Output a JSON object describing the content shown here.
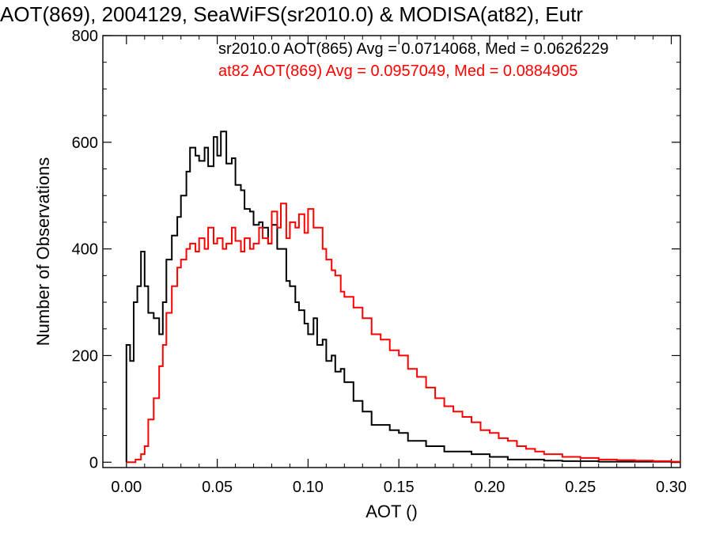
{
  "chart_data": {
    "type": "line",
    "title": "AOT(869), 2004129, SeaWiFS(sr2010.0) & MODISA(at82), Eutr",
    "xlabel": "AOT ()",
    "ylabel": "Number of Observations",
    "xlim": [
      -0.013,
      0.305
    ],
    "ylim": [
      -10,
      800
    ],
    "xticks": [
      0.0,
      0.05,
      0.1,
      0.15,
      0.2,
      0.25,
      0.3
    ],
    "xtick_labels": [
      "0.00",
      "0.05",
      "0.10",
      "0.15",
      "0.20",
      "0.25",
      "0.30"
    ],
    "yticks": [
      0,
      200,
      400,
      600,
      800
    ],
    "ytick_labels": [
      "0",
      "200",
      "400",
      "600",
      "800"
    ],
    "annotations": [
      {
        "text": "sr2010.0 AOT(865) Avg = 0.0714068, Med = 0.0626229",
        "color": "#000000"
      },
      {
        "text": "at82 AOT(869) Avg = 0.0957049, Med = 0.0884905",
        "color": "#ff0000"
      }
    ],
    "grid": false,
    "series": [
      {
        "color": "#000000",
        "x": [
          0.0,
          0.002,
          0.004,
          0.006,
          0.008,
          0.01,
          0.012,
          0.015,
          0.018,
          0.02,
          0.022,
          0.025,
          0.028,
          0.03,
          0.033,
          0.035,
          0.038,
          0.04,
          0.043,
          0.045,
          0.048,
          0.05,
          0.052,
          0.055,
          0.058,
          0.06,
          0.063,
          0.065,
          0.068,
          0.07,
          0.073,
          0.075,
          0.078,
          0.08,
          0.083,
          0.085,
          0.088,
          0.09,
          0.093,
          0.095,
          0.098,
          0.1,
          0.103,
          0.105,
          0.108,
          0.11,
          0.113,
          0.115,
          0.118,
          0.12,
          0.125,
          0.13,
          0.135,
          0.14,
          0.145,
          0.15,
          0.155,
          0.16,
          0.165,
          0.17,
          0.175,
          0.18,
          0.185,
          0.19,
          0.195,
          0.2,
          0.205,
          0.21,
          0.215,
          0.22,
          0.23,
          0.24,
          0.25,
          0.26,
          0.27,
          0.28,
          0.29,
          0.3
        ],
        "y": [
          220,
          190,
          300,
          330,
          395,
          330,
          280,
          270,
          240,
          300,
          380,
          425,
          460,
          500,
          545,
          590,
          575,
          565,
          590,
          555,
          610,
          575,
          620,
          560,
          570,
          520,
          510,
          475,
          470,
          445,
          450,
          440,
          410,
          445,
          400,
          400,
          340,
          330,
          300,
          285,
          260,
          240,
          270,
          220,
          230,
          190,
          200,
          170,
          175,
          150,
          115,
          95,
          70,
          70,
          60,
          55,
          40,
          40,
          30,
          30,
          20,
          20,
          20,
          15,
          15,
          10,
          10,
          5,
          5,
          5,
          3,
          2,
          2,
          1,
          1,
          1,
          1,
          0
        ]
      },
      {
        "color": "#ff0000",
        "x": [
          0.0,
          0.005,
          0.008,
          0.01,
          0.012,
          0.015,
          0.018,
          0.02,
          0.022,
          0.025,
          0.028,
          0.03,
          0.033,
          0.035,
          0.038,
          0.04,
          0.043,
          0.045,
          0.048,
          0.05,
          0.053,
          0.055,
          0.058,
          0.06,
          0.063,
          0.065,
          0.068,
          0.07,
          0.073,
          0.075,
          0.078,
          0.08,
          0.083,
          0.085,
          0.088,
          0.09,
          0.093,
          0.095,
          0.098,
          0.1,
          0.103,
          0.105,
          0.108,
          0.11,
          0.113,
          0.115,
          0.118,
          0.12,
          0.125,
          0.13,
          0.135,
          0.14,
          0.145,
          0.15,
          0.155,
          0.16,
          0.165,
          0.17,
          0.175,
          0.18,
          0.185,
          0.19,
          0.195,
          0.2,
          0.205,
          0.21,
          0.215,
          0.22,
          0.225,
          0.23,
          0.24,
          0.25,
          0.26,
          0.27,
          0.28,
          0.29,
          0.3
        ],
        "y": [
          0,
          5,
          15,
          30,
          80,
          120,
          180,
          220,
          280,
          330,
          365,
          380,
          400,
          410,
          395,
          420,
          400,
          440,
          410,
          420,
          400,
          410,
          440,
          415,
          395,
          420,
          400,
          410,
          440,
          420,
          410,
          470,
          440,
          485,
          420,
          450,
          440,
          465,
          430,
          475,
          440,
          440,
          400,
          380,
          360,
          350,
          320,
          310,
          290,
          270,
          240,
          230,
          210,
          200,
          175,
          160,
          140,
          120,
          105,
          95,
          85,
          75,
          60,
          55,
          45,
          40,
          30,
          25,
          20,
          15,
          10,
          8,
          5,
          4,
          3,
          2,
          1
        ]
      }
    ]
  }
}
